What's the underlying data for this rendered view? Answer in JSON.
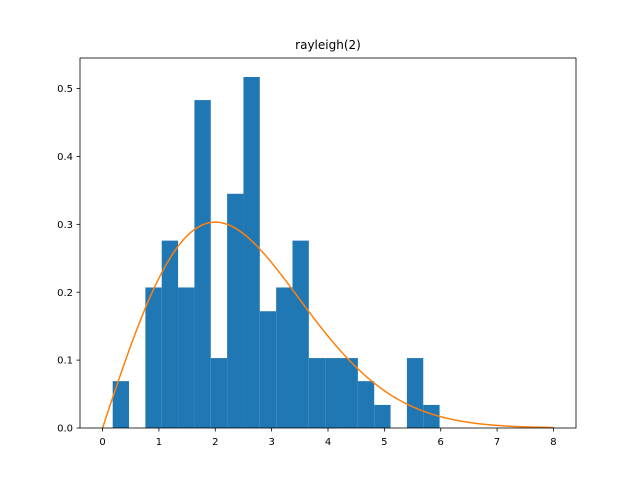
{
  "chart_data": {
    "type": "bar",
    "title": "rayleigh(2)",
    "xlabel": "",
    "ylabel": "",
    "xlim": [
      -0.4,
      8.4
    ],
    "ylim": [
      0,
      0.545
    ],
    "x_ticks": [
      0,
      1,
      2,
      3,
      4,
      5,
      6,
      7,
      8
    ],
    "x_tick_labels": [
      "0",
      "1",
      "2",
      "3",
      "4",
      "5",
      "6",
      "7",
      "8"
    ],
    "y_ticks": [
      0.0,
      0.1,
      0.2,
      0.3,
      0.4,
      0.5
    ],
    "y_tick_labels": [
      "0.0",
      "0.1",
      "0.2",
      "0.3",
      "0.4",
      "0.5"
    ],
    "grid": false,
    "series": [
      {
        "type": "histogram",
        "color": "#1f77b4",
        "bins": [
          {
            "x0": 0.18,
            "x1": 0.47,
            "value": 0.069
          },
          {
            "x0": 0.76,
            "x1": 1.05,
            "value": 0.207
          },
          {
            "x0": 1.05,
            "x1": 1.34,
            "value": 0.276
          },
          {
            "x0": 1.34,
            "x1": 1.63,
            "value": 0.207
          },
          {
            "x0": 1.63,
            "x1": 1.92,
            "value": 0.483
          },
          {
            "x0": 1.92,
            "x1": 2.21,
            "value": 0.103
          },
          {
            "x0": 2.21,
            "x1": 2.5,
            "value": 0.345
          },
          {
            "x0": 2.5,
            "x1": 2.79,
            "value": 0.517
          },
          {
            "x0": 2.79,
            "x1": 3.08,
            "value": 0.172
          },
          {
            "x0": 3.08,
            "x1": 3.37,
            "value": 0.207
          },
          {
            "x0": 3.37,
            "x1": 3.66,
            "value": 0.276
          },
          {
            "x0": 3.66,
            "x1": 3.95,
            "value": 0.103
          },
          {
            "x0": 3.95,
            "x1": 4.24,
            "value": 0.103
          },
          {
            "x0": 4.24,
            "x1": 4.53,
            "value": 0.103
          },
          {
            "x0": 4.53,
            "x1": 4.82,
            "value": 0.069
          },
          {
            "x0": 4.82,
            "x1": 5.11,
            "value": 0.034
          },
          {
            "x0": 5.4,
            "x1": 5.69,
            "value": 0.103
          },
          {
            "x0": 5.69,
            "x1": 5.98,
            "value": 0.034
          }
        ]
      },
      {
        "type": "line",
        "color": "#ff7f0e",
        "function": "rayleigh_pdf",
        "scale": 2,
        "x_range": [
          0,
          8
        ]
      }
    ]
  }
}
